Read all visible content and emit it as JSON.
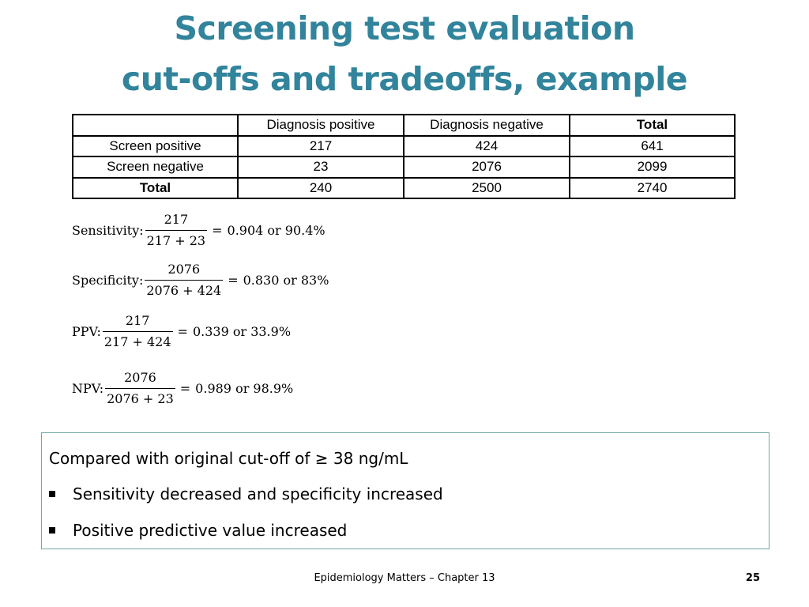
{
  "title": {
    "line1": "Screening test evaluation",
    "line2": "cut-offs and tradeoffs, example"
  },
  "table": {
    "header": [
      "",
      "Diagnosis positive",
      "Diagnosis negative",
      "Total"
    ],
    "rows": [
      [
        "Screen positive",
        "217",
        "424",
        "641"
      ],
      [
        "Screen negative",
        "23",
        "2076",
        "2099"
      ],
      [
        "Total",
        "240",
        "2500",
        "2740"
      ]
    ]
  },
  "formulas": [
    {
      "label": "Sensitivity:",
      "numerator": "217",
      "denominator": "217 + 23",
      "result": "0.904 or 90.4%"
    },
    {
      "label": "Specificity:",
      "numerator": "2076",
      "denominator": "2076 + 424",
      "result": "0.830 or 83%"
    },
    {
      "label": "PPV:",
      "numerator": "217",
      "denominator": "217 + 424",
      "result": "0.339 or 33.9%"
    },
    {
      "label": "NPV:",
      "numerator": "2076",
      "denominator": "2076 + 23",
      "result": "0.989 or 98.9%"
    }
  ],
  "callout": {
    "lead": "Compared with original cut-off of ≥ 38 ng/mL",
    "bullets": [
      "Sensitivity decreased and specificity increased",
      "Positive predictive value increased"
    ]
  },
  "footer": {
    "text": "Epidemiology Matters – Chapter 13",
    "page": "25"
  }
}
